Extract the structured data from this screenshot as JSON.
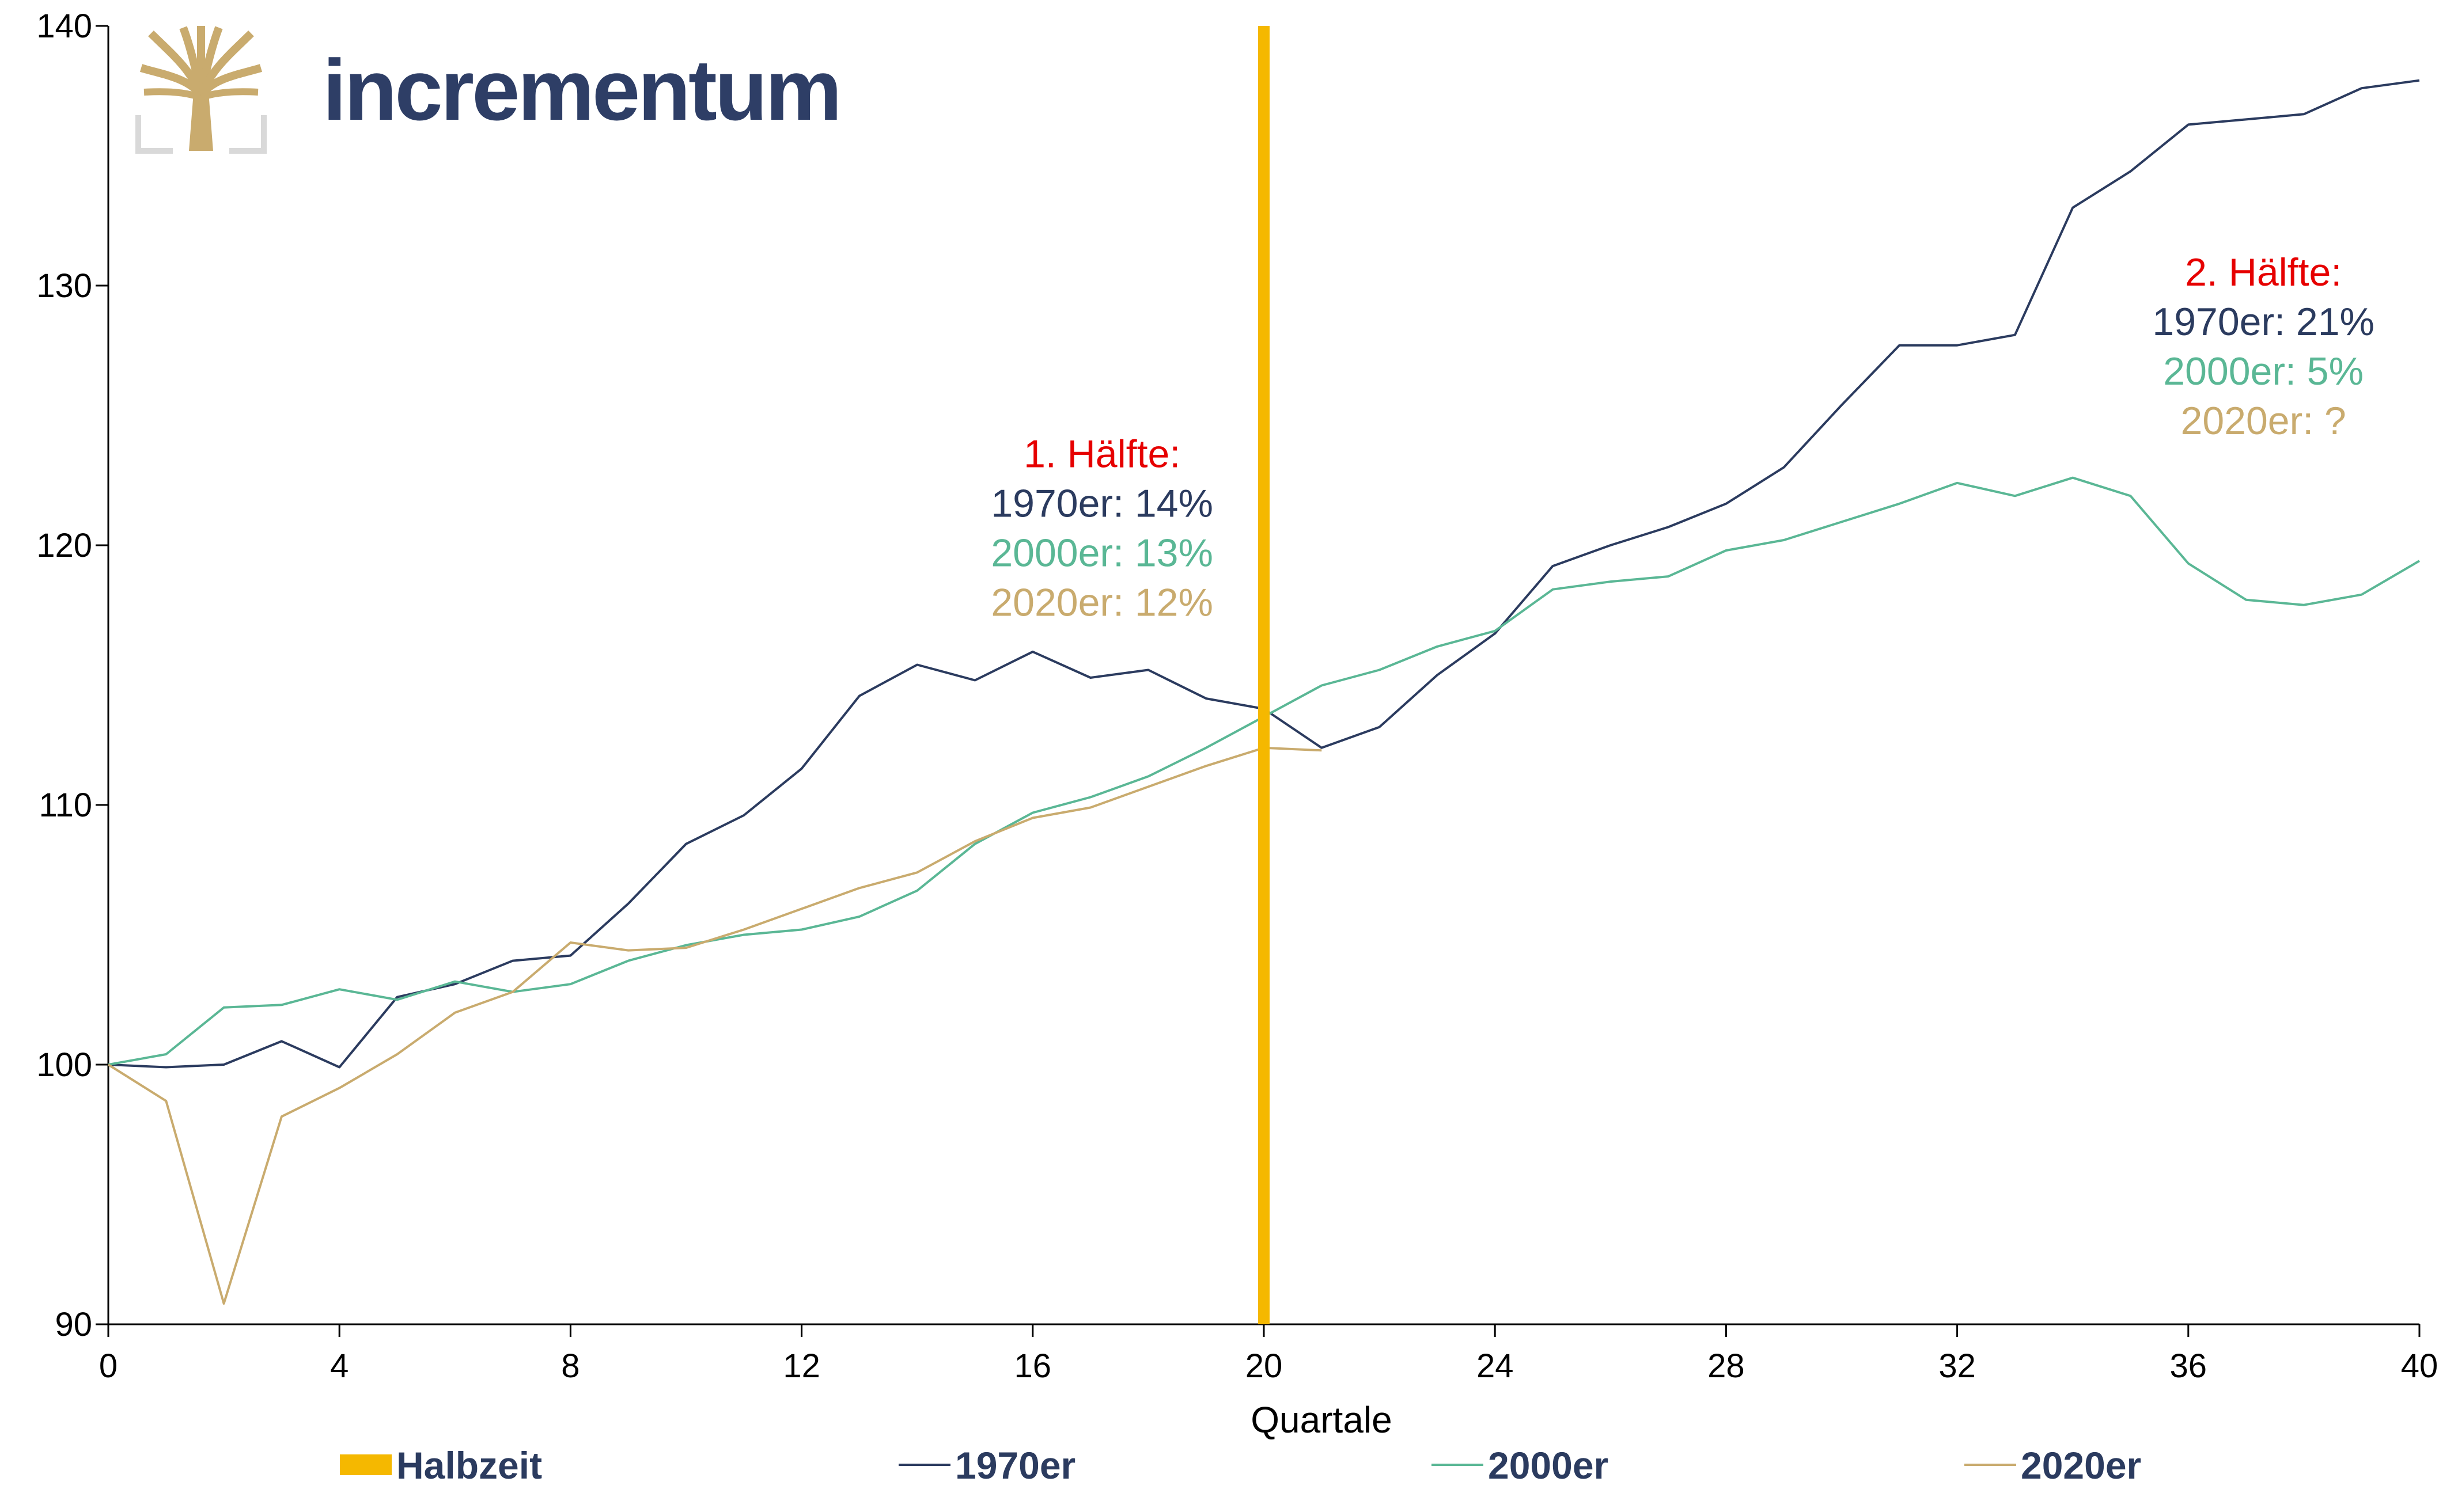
{
  "logo": {
    "text": "incrementum"
  },
  "chart_data": {
    "type": "line",
    "xlabel": "Quartale",
    "ylabel": "",
    "xlim": [
      0,
      40
    ],
    "ylim": [
      90,
      140
    ],
    "x_ticks": [
      "0",
      "4",
      "8",
      "12",
      "16",
      "20",
      "24",
      "28",
      "32",
      "36",
      "40"
    ],
    "y_ticks": [
      "90",
      "100",
      "110",
      "120",
      "130",
      "140"
    ],
    "grid": false,
    "legend_position": "bottom",
    "marker_line": {
      "name": "Halbzeit",
      "x": 20,
      "color": "#f5b800"
    },
    "series": [
      {
        "name": "1970er",
        "color": "#2b3b5f",
        "x": [
          0,
          1,
          2,
          3,
          4,
          5,
          6,
          7,
          8,
          9,
          10,
          11,
          12,
          13,
          14,
          15,
          16,
          17,
          18,
          19,
          20,
          21,
          22,
          23,
          24,
          25,
          26,
          27,
          28,
          29,
          30,
          31,
          32,
          33,
          34,
          35,
          36,
          37,
          38,
          39,
          40
        ],
        "values": [
          100,
          99.9,
          100,
          100.9,
          99.9,
          102.6,
          103.1,
          104,
          104.2,
          106.2,
          108.5,
          109.6,
          111.4,
          114.2,
          115.4,
          114.8,
          115.9,
          114.9,
          115.2,
          114.1,
          113.7,
          112.2,
          113,
          115,
          116.6,
          119.2,
          120,
          120.7,
          121.6,
          123,
          125.4,
          127.7,
          127.7,
          128.1,
          133,
          134.4,
          136.2,
          136.4,
          136.6,
          137.6,
          137.9
        ]
      },
      {
        "name": "2000er",
        "color": "#5ab795",
        "x": [
          0,
          1,
          2,
          3,
          4,
          5,
          6,
          7,
          8,
          9,
          10,
          11,
          12,
          13,
          14,
          15,
          16,
          17,
          18,
          19,
          20,
          21,
          22,
          23,
          24,
          25,
          26,
          27,
          28,
          29,
          30,
          31,
          32,
          33,
          34,
          35,
          36,
          37,
          38,
          39,
          40
        ],
        "values": [
          100,
          100.4,
          102.2,
          102.3,
          102.9,
          102.5,
          103.2,
          102.8,
          103.1,
          104,
          104.6,
          105,
          105.2,
          105.7,
          106.7,
          108.5,
          109.7,
          110.3,
          111.1,
          112.2,
          113.4,
          114.6,
          115.2,
          116.1,
          116.7,
          118.3,
          118.6,
          118.8,
          119.8,
          120.2,
          120.9,
          121.6,
          122.4,
          121.9,
          122.6,
          121.9,
          119.3,
          117.9,
          117.7,
          118.1,
          119.4
        ]
      },
      {
        "name": "2020er",
        "color": "#c9ab6e",
        "x": [
          0,
          1,
          2,
          3,
          4,
          5,
          6,
          7,
          8,
          9,
          10,
          11,
          12,
          13,
          14,
          15,
          16,
          17,
          18,
          19,
          20,
          21
        ],
        "values": [
          100,
          98.6,
          90.8,
          98,
          99.1,
          100.4,
          102,
          102.8,
          104.7,
          104.4,
          104.5,
          105.2,
          106,
          106.8,
          107.4,
          108.6,
          109.5,
          109.9,
          110.7,
          111.5,
          112.2,
          112.1
        ]
      }
    ],
    "annotations": [
      {
        "heading": "1. Hälfte:",
        "lines": [
          "1970er: 14%",
          "2000er: 13%",
          "2020er: 12%"
        ],
        "at": [
          17.2,
          123
        ]
      },
      {
        "heading": "2. Hälfte:",
        "lines": [
          "1970er: 21%",
          "2000er: 5%",
          "2020er: ?"
        ],
        "at": [
          37.3,
          130
        ]
      }
    ],
    "annotation_colors": {
      "heading": "#e60000",
      "lines": [
        "#2b3b5f",
        "#5ab795",
        "#c9ab6e"
      ]
    }
  }
}
